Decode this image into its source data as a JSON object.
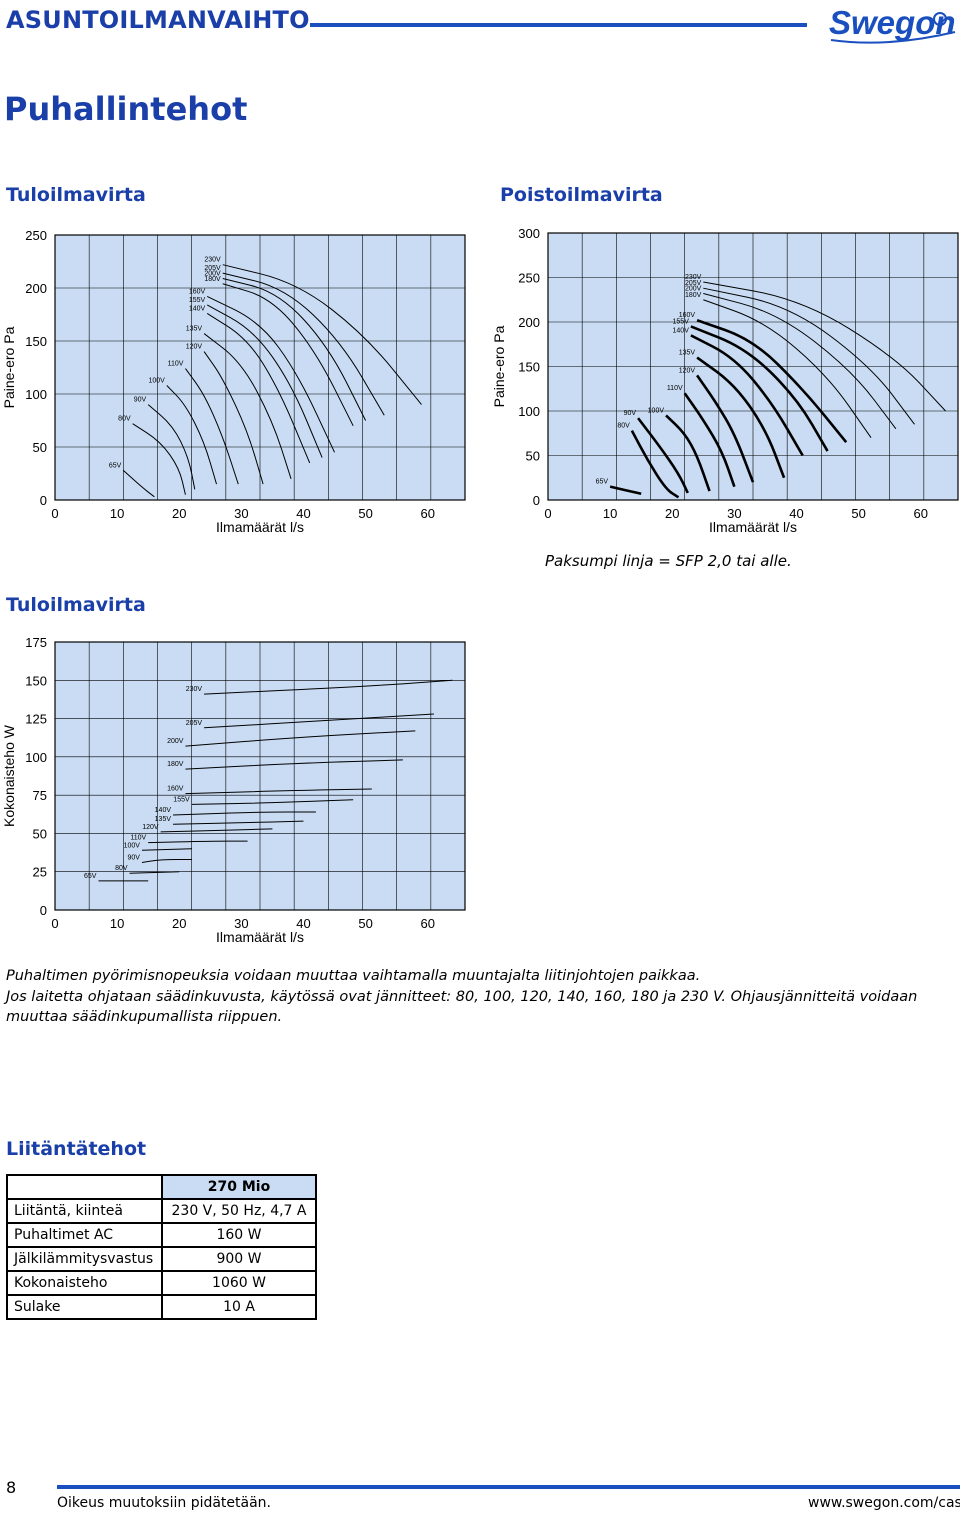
{
  "header": {
    "doc_title": "ASUNTOILMANVAIHTO",
    "logo_text": "Swegon",
    "brand_color": "#1a4fc0"
  },
  "page_title": "Puhallintehot",
  "charts": {
    "supply_pressure": {
      "heading": "Tuloilmavirta",
      "ylabel": "Paine-ero Pa",
      "xlabel": "Ilmamäärät l/s",
      "yticks": [
        "250",
        "200",
        "150",
        "100",
        "50",
        "0"
      ],
      "xticks": [
        "0",
        "10",
        "20",
        "30",
        "40",
        "50",
        "60"
      ]
    },
    "exhaust_pressure": {
      "heading": "Poistoilmavirta",
      "ylabel": "Paine-ero Pa",
      "xlabel": "Ilmamäärät l/s",
      "yticks": [
        "300",
        "250",
        "200",
        "150",
        "100",
        "50",
        "0"
      ],
      "xticks": [
        "0",
        "10",
        "20",
        "30",
        "40",
        "50",
        "60"
      ]
    },
    "supply_power": {
      "heading": "Tuloilmavirta",
      "ylabel": "Kokonaisteho W",
      "xlabel": "Ilmamäärät l/s",
      "yticks": [
        "175",
        "150",
        "125",
        "100",
        "75",
        "50",
        "25",
        "0"
      ],
      "xticks": [
        "0",
        "10",
        "20",
        "30",
        "40",
        "50",
        "60"
      ]
    }
  },
  "chart_data": [
    {
      "type": "line",
      "xlabel": "Ilmamäärät l/s",
      "ylabel": "Paine-ero Pa",
      "xlim": [
        0,
        66
      ],
      "ylim": [
        0,
        250
      ],
      "grid": true,
      "series": [
        {
          "name": "65V",
          "points": [
            [
              11,
              28
            ],
            [
              14,
              12
            ],
            [
              16,
              3
            ]
          ]
        },
        {
          "name": "80V",
          "points": [
            [
              12.5,
              72
            ],
            [
              17,
              55
            ],
            [
              20,
              30
            ],
            [
              21,
              5
            ]
          ]
        },
        {
          "name": "90V",
          "points": [
            [
              15,
              90
            ],
            [
              19,
              70
            ],
            [
              21.5,
              40
            ],
            [
              22.5,
              10
            ]
          ]
        },
        {
          "name": "100V",
          "points": [
            [
              18,
              108
            ],
            [
              21,
              90
            ],
            [
              24,
              55
            ],
            [
              26,
              15
            ]
          ]
        },
        {
          "name": "110V",
          "points": [
            [
              21,
              124
            ],
            [
              24,
              100
            ],
            [
              27,
              60
            ],
            [
              29.5,
              15
            ]
          ]
        },
        {
          "name": "120V",
          "points": [
            [
              24,
              140
            ],
            [
              27,
              115
            ],
            [
              31,
              65
            ],
            [
              33.5,
              15
            ]
          ]
        },
        {
          "name": "135V",
          "points": [
            [
              24,
              157
            ],
            [
              30,
              130
            ],
            [
              35,
              75
            ],
            [
              38,
              20
            ]
          ]
        },
        {
          "name": "140V",
          "points": [
            [
              24.5,
              176
            ],
            [
              31,
              152
            ],
            [
              36,
              105
            ],
            [
              41,
              35
            ]
          ]
        },
        {
          "name": "155V",
          "points": [
            [
              24.5,
              184
            ],
            [
              32,
              160
            ],
            [
              38,
              110
            ],
            [
              43,
              40
            ]
          ]
        },
        {
          "name": "160V",
          "points": [
            [
              24.5,
              192
            ],
            [
              33,
              168
            ],
            [
              39,
              120
            ],
            [
              45,
              45
            ]
          ]
        },
        {
          "name": "180V",
          "points": [
            [
              27,
              204
            ],
            [
              35,
              190
            ],
            [
              42,
              140
            ],
            [
              48,
              70
            ]
          ]
        },
        {
          "name": "200V",
          "points": [
            [
              27,
              209
            ],
            [
              36,
              196
            ],
            [
              44,
              145
            ],
            [
              50,
              75
            ]
          ]
        },
        {
          "name": "205V",
          "points": [
            [
              27,
              214
            ],
            [
              37,
              200
            ],
            [
              46,
              150
            ],
            [
              53,
              80
            ]
          ]
        },
        {
          "name": "230V",
          "points": [
            [
              27,
              222
            ],
            [
              39,
              205
            ],
            [
              50,
              155
            ],
            [
              59,
              90
            ]
          ]
        }
      ]
    },
    {
      "type": "line",
      "xlabel": "Ilmamäärät l/s",
      "ylabel": "Paine-ero Pa",
      "xlim": [
        0,
        66
      ],
      "ylim": [
        0,
        300
      ],
      "grid": true,
      "series": [
        {
          "name": "65V",
          "points": [
            [
              10,
              15
            ],
            [
              15,
              7
            ]
          ]
        },
        {
          "name": "80V",
          "points": [
            [
              13.5,
              78
            ],
            [
              16,
              45
            ],
            [
              19,
              12
            ],
            [
              21,
              3
            ]
          ]
        },
        {
          "name": "90V",
          "points": [
            [
              14.5,
              92
            ],
            [
              18,
              60
            ],
            [
              21,
              30
            ],
            [
              22.5,
              8
            ]
          ]
        },
        {
          "name": "100V",
          "points": [
            [
              19,
              95
            ],
            [
              22,
              75
            ],
            [
              24,
              50
            ],
            [
              26,
              10
            ]
          ]
        },
        {
          "name": "110V",
          "points": [
            [
              22,
              120
            ],
            [
              25,
              90
            ],
            [
              28,
              55
            ],
            [
              30,
              15
            ]
          ]
        },
        {
          "name": "120V",
          "points": [
            [
              24,
              140
            ],
            [
              27,
              110
            ],
            [
              30,
              75
            ],
            [
              33,
              20
            ]
          ]
        },
        {
          "name": "135V",
          "points": [
            [
              24,
              160
            ],
            [
              30,
              130
            ],
            [
              35,
              80
            ],
            [
              38,
              25
            ]
          ]
        },
        {
          "name": "140V",
          "points": [
            [
              23,
              185
            ],
            [
              30,
              160
            ],
            [
              36,
              110
            ],
            [
              41,
              50
            ]
          ]
        },
        {
          "name": "155V",
          "points": [
            [
              23,
              195
            ],
            [
              32,
              170
            ],
            [
              40,
              115
            ],
            [
              45,
              55
            ]
          ]
        },
        {
          "name": "160V",
          "points": [
            [
              24,
              202
            ],
            [
              33,
              180
            ],
            [
              41,
              125
            ],
            [
              48,
              65
            ]
          ]
        },
        {
          "name": "180V",
          "points": [
            [
              25,
              225
            ],
            [
              35,
              200
            ],
            [
              45,
              140
            ],
            [
              52,
              70
            ]
          ]
        },
        {
          "name": "200V",
          "points": [
            [
              25,
              232
            ],
            [
              37,
              210
            ],
            [
              49,
              145
            ],
            [
              56,
              80
            ]
          ]
        },
        {
          "name": "205V",
          "points": [
            [
              25,
              238
            ],
            [
              39,
              218
            ],
            [
              52,
              150
            ],
            [
              59,
              85
            ]
          ]
        },
        {
          "name": "230V",
          "points": [
            [
              25,
              245
            ],
            [
              41,
              225
            ],
            [
              56,
              160
            ],
            [
              64,
              100
            ]
          ]
        }
      ]
    },
    {
      "type": "line",
      "xlabel": "Ilmamäärät l/s",
      "ylabel": "Kokonaisteho W",
      "xlim": [
        0,
        66
      ],
      "ylim": [
        0,
        175
      ],
      "grid": true,
      "series": [
        {
          "name": "65V",
          "points": [
            [
              7,
              19
            ],
            [
              15,
              19
            ]
          ]
        },
        {
          "name": "80V",
          "points": [
            [
              12,
              24
            ],
            [
              20,
              25
            ]
          ]
        },
        {
          "name": "90V",
          "points": [
            [
              14,
              31
            ],
            [
              17,
              33
            ],
            [
              22,
              33
            ]
          ]
        },
        {
          "name": "100V",
          "points": [
            [
              14,
              39
            ],
            [
              22,
              40
            ]
          ]
        },
        {
          "name": "110V",
          "points": [
            [
              15,
              44
            ],
            [
              25,
              45
            ],
            [
              31,
              45
            ]
          ]
        },
        {
          "name": "120V",
          "points": [
            [
              17,
              51
            ],
            [
              27,
              52
            ],
            [
              35,
              53
            ]
          ]
        },
        {
          "name": "135V",
          "points": [
            [
              19,
              56
            ],
            [
              30,
              57
            ],
            [
              40,
              58
            ]
          ]
        },
        {
          "name": "140V",
          "points": [
            [
              19,
              62
            ],
            [
              33,
              64
            ],
            [
              42,
              64
            ]
          ]
        },
        {
          "name": "155V",
          "points": [
            [
              22,
              69
            ],
            [
              35,
              70
            ],
            [
              48,
              72
            ]
          ]
        },
        {
          "name": "160V",
          "points": [
            [
              21,
              76
            ],
            [
              38,
              78
            ],
            [
              51,
              79
            ]
          ]
        },
        {
          "name": "180V",
          "points": [
            [
              21,
              92
            ],
            [
              40,
              96
            ],
            [
              56,
              98
            ]
          ]
        },
        {
          "name": "200V",
          "points": [
            [
              21,
              107
            ],
            [
              40,
              113
            ],
            [
              58,
              117
            ]
          ]
        },
        {
          "name": "205V",
          "points": [
            [
              24,
              119
            ],
            [
              45,
              124
            ],
            [
              61,
              128
            ]
          ]
        },
        {
          "name": "230V",
          "points": [
            [
              24,
              141
            ],
            [
              50,
              146
            ],
            [
              64,
              150
            ]
          ]
        }
      ]
    }
  ],
  "note": "Paksumpi linja = SFP 2,0 tai alle.",
  "caption_line1": "Puhaltimen pyörimisnopeuksia voidaan muuttaa vaihtamalla muuntajalta liitinjohtojen paikkaa.",
  "caption_line2": "Jos laitetta ohjataan säädinkuvusta, käytössä ovat jännitteet: 80, 100, 120, 140, 160, 180 ja 230 V. Ohjausjännitteitä voidaan muuttaa säädinkupumallista riippuen.",
  "connections": {
    "heading": "Liitäntätehot",
    "column_header": "270 Mio",
    "rows": [
      {
        "label": "Liitäntä, kiinteä",
        "value": "230 V, 50 Hz, 4,7 A"
      },
      {
        "label": "Puhaltimet AC",
        "value": "160 W"
      },
      {
        "label": "Jälkilämmitysvastus",
        "value": "900 W"
      },
      {
        "label": "Kokonaisteho",
        "value": "1060 W"
      },
      {
        "label": "Sulake",
        "value": "10 A"
      }
    ]
  },
  "footer": {
    "page_number": "8",
    "left": "Oikeus muutoksiin pidätetään.",
    "right": "www.swegon.com/casa"
  }
}
